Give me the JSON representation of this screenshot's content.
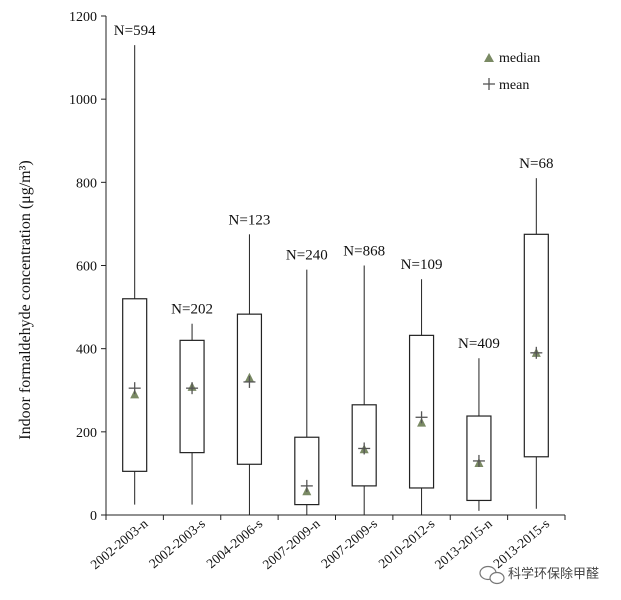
{
  "chart_data": {
    "type": "boxplot",
    "title": "",
    "ylabel": "Indoor formaldehyde concentration (μg/m³)",
    "xlabel": "",
    "ylim": [
      0,
      1200
    ],
    "yticks": [
      0,
      200,
      400,
      600,
      800,
      1000,
      1200
    ],
    "grid": false,
    "legend": {
      "placement": "top-right",
      "entries": [
        {
          "label": "median",
          "marker": "triangle",
          "color": "#7a8a64"
        },
        {
          "label": "mean",
          "marker": "plus",
          "color": "#555555"
        }
      ]
    },
    "categories": [
      "2002-2003-n",
      "2002-2003-s",
      "2004-2006-s",
      "2007-2009-n",
      "2007-2009-s",
      "2010-2012-s",
      "2013-2015-n",
      "2013-2015-s"
    ],
    "n_labels": [
      "N=594",
      "N=202",
      "N=123",
      "N=240",
      "N=868",
      "N=109",
      "N=409",
      "N=68"
    ],
    "boxes": [
      {
        "min": 25,
        "q1": 105,
        "median": 290,
        "mean": 305,
        "q3": 520,
        "max": 1130
      },
      {
        "min": 25,
        "q1": 150,
        "median": 308,
        "mean": 305,
        "q3": 420,
        "max": 460
      },
      {
        "min": 0,
        "q1": 122,
        "median": 330,
        "mean": 320,
        "q3": 483,
        "max": 675
      },
      {
        "min": 0,
        "q1": 25,
        "median": 57,
        "mean": 70,
        "q3": 187,
        "max": 590
      },
      {
        "min": 0,
        "q1": 70,
        "median": 158,
        "mean": 160,
        "q3": 265,
        "max": 600
      },
      {
        "min": 0,
        "q1": 65,
        "median": 222,
        "mean": 235,
        "q3": 432,
        "max": 567
      },
      {
        "min": 10,
        "q1": 35,
        "median": 125,
        "mean": 130,
        "q3": 238,
        "max": 377
      },
      {
        "min": 15,
        "q1": 140,
        "median": 390,
        "mean": 390,
        "q3": 675,
        "max": 810
      }
    ],
    "colors": {
      "box": "#222222",
      "median": "#7a8a64",
      "mean": "#555555"
    }
  },
  "watermark": {
    "text": "科学环保除甲醛",
    "logo_icon": "wechat-bubble-icon"
  }
}
